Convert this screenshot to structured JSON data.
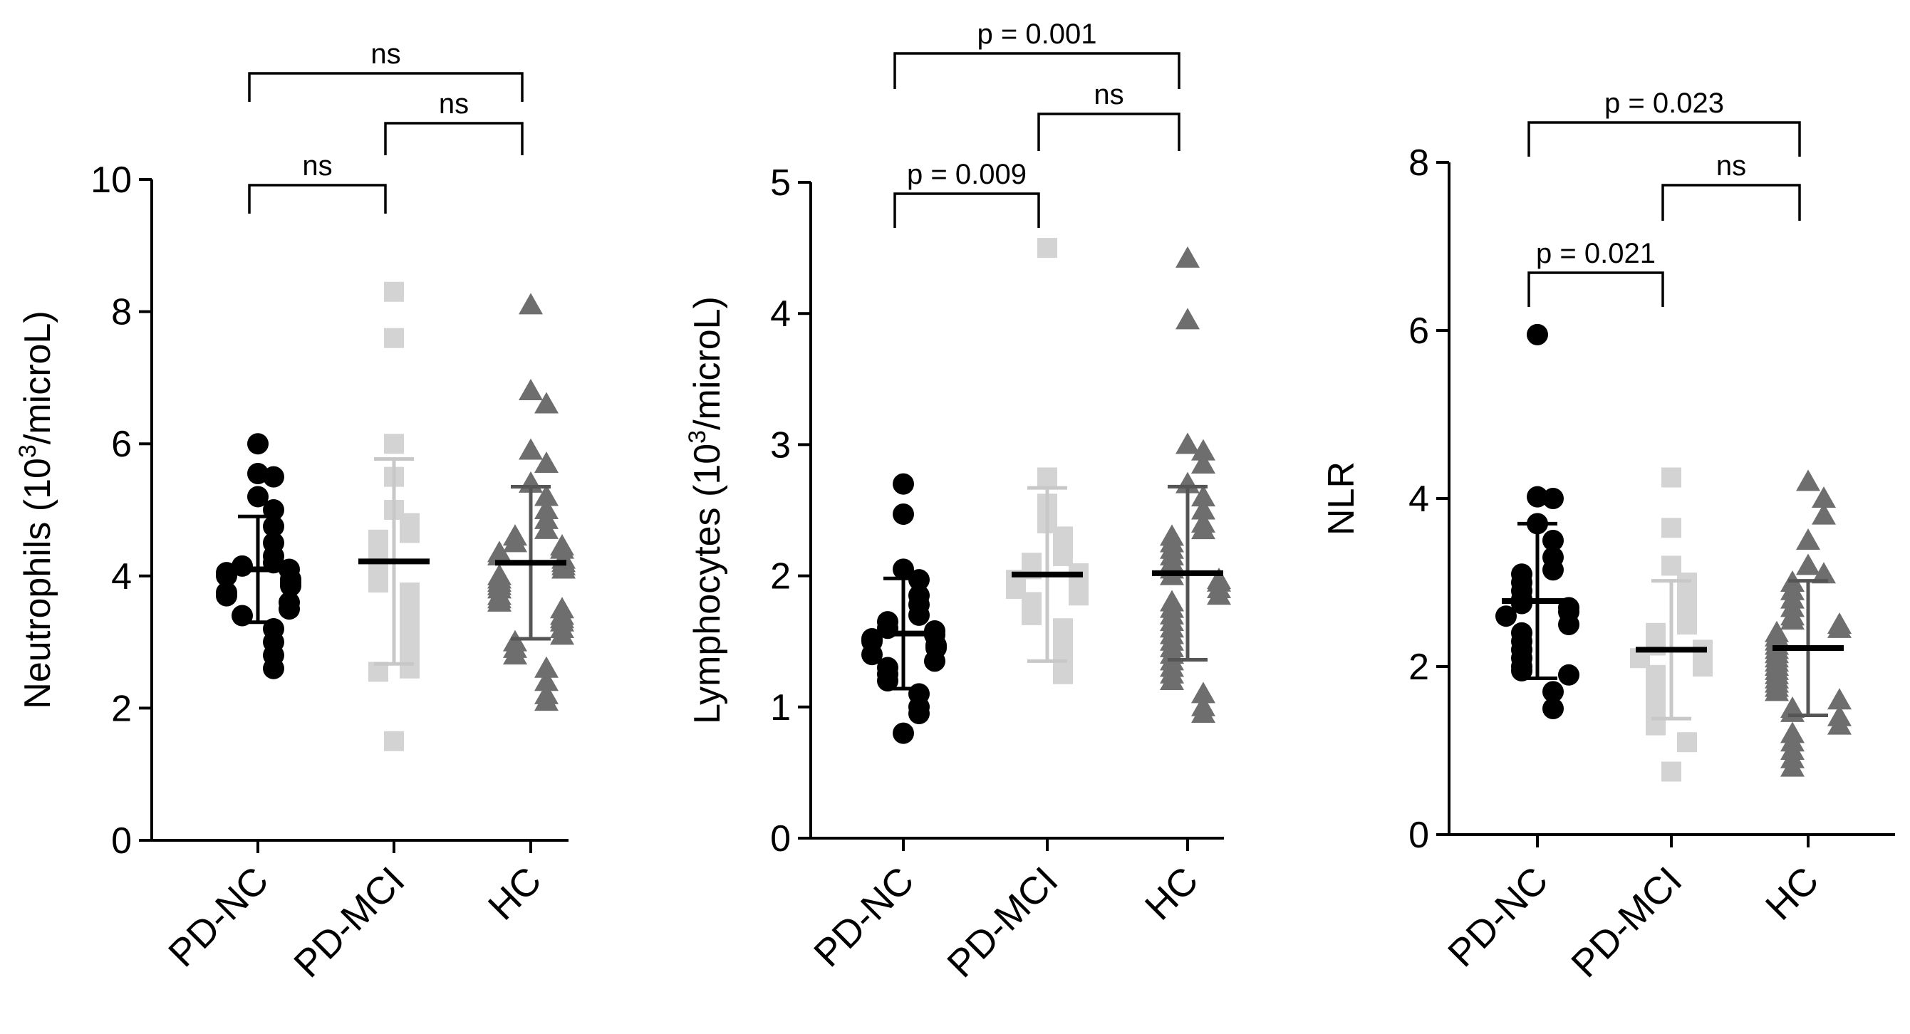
{
  "chart_data": [
    {
      "type": "scatter",
      "ylabel": "Neutrophils (10",
      "ylabel_sup": "3",
      "ylabel_suffix": "/microL)",
      "ylim": [
        0,
        10
      ],
      "yticks": [
        "0",
        "2",
        "4",
        "6",
        "8",
        "10"
      ],
      "categories": [
        "PD-NC",
        "PD-MCI",
        "HC"
      ],
      "colors": [
        "#000000",
        "#d3d3d3",
        "#6e6e6e"
      ],
      "markers": [
        "circle",
        "square",
        "triangle"
      ],
      "means": [
        4.1,
        4.22,
        4.2
      ],
      "sd": [
        0.8,
        1.55,
        1.15
      ],
      "points": [
        [
          6.0,
          5.55,
          5.5,
          5.2,
          5.0,
          4.75,
          4.5,
          4.3,
          4.2,
          4.15,
          4.1,
          4.05,
          4.0,
          3.95,
          3.9,
          3.85,
          3.75,
          3.7,
          3.6,
          3.5,
          3.4,
          3.2,
          3.0,
          2.8,
          2.6
        ],
        [
          8.3,
          7.6,
          6.0,
          5.5,
          5.0,
          4.8,
          4.65,
          4.55,
          4.45,
          4.35,
          4.25,
          4.15,
          4.05,
          3.9,
          3.75,
          3.6,
          3.4,
          3.2,
          3.0,
          2.8,
          2.6,
          2.55,
          1.5
        ],
        [
          8.1,
          6.8,
          6.6,
          5.9,
          5.7,
          5.4,
          5.2,
          5.0,
          4.85,
          4.7,
          4.6,
          4.5,
          4.45,
          4.4,
          4.35,
          4.3,
          4.25,
          4.2,
          4.15,
          4.1,
          4.0,
          3.95,
          3.9,
          3.85,
          3.8,
          3.7,
          3.65,
          3.6,
          3.5,
          3.4,
          3.35,
          3.3,
          3.2,
          3.1,
          3.0,
          2.9,
          2.8,
          2.6,
          2.4,
          2.2,
          2.1
        ]
      ],
      "comparisons": [
        {
          "from": 0,
          "to": 1,
          "label": "ns"
        },
        {
          "from": 1,
          "to": 2,
          "label": "ns"
        },
        {
          "from": 0,
          "to": 2,
          "label": "ns"
        }
      ]
    },
    {
      "type": "scatter",
      "ylabel": "Lymphocytes (10",
      "ylabel_sup": "3",
      "ylabel_suffix": "/microL)",
      "ylim": [
        0,
        5
      ],
      "yticks": [
        "0",
        "1",
        "2",
        "3",
        "4",
        "5"
      ],
      "categories": [
        "PD-NC",
        "PD-MCI",
        "HC"
      ],
      "colors": [
        "#000000",
        "#d3d3d3",
        "#6e6e6e"
      ],
      "markers": [
        "circle",
        "square",
        "triangle"
      ],
      "means": [
        1.56,
        2.01,
        2.02
      ],
      "sd": [
        0.42,
        0.66,
        0.66
      ],
      "points": [
        [
          2.7,
          2.47,
          2.05,
          1.97,
          1.85,
          1.78,
          1.7,
          1.65,
          1.6,
          1.58,
          1.55,
          1.52,
          1.5,
          1.47,
          1.45,
          1.4,
          1.35,
          1.3,
          1.25,
          1.2,
          1.1,
          1.0,
          0.95,
          0.8
        ],
        [
          4.5,
          2.75,
          2.55,
          2.4,
          2.3,
          2.2,
          2.15,
          2.1,
          2.05,
          2.02,
          2.0,
          1.97,
          1.95,
          1.9,
          1.85,
          1.8,
          1.75,
          1.7,
          1.6,
          1.5,
          1.4,
          1.3,
          1.25
        ],
        [
          4.42,
          3.95,
          3.0,
          2.95,
          2.85,
          2.7,
          2.6,
          2.5,
          2.4,
          2.35,
          2.3,
          2.25,
          2.2,
          2.15,
          2.1,
          2.05,
          2.0,
          1.97,
          1.95,
          1.9,
          1.85,
          1.8,
          1.75,
          1.7,
          1.65,
          1.6,
          1.55,
          1.5,
          1.45,
          1.4,
          1.35,
          1.3,
          1.25,
          1.2,
          1.1,
          1.0,
          0.95
        ]
      ],
      "comparisons": [
        {
          "from": 0,
          "to": 1,
          "label": "p = 0.009"
        },
        {
          "from": 1,
          "to": 2,
          "label": "ns"
        },
        {
          "from": 0,
          "to": 2,
          "label": "p = 0.001"
        }
      ]
    },
    {
      "type": "scatter",
      "ylabel": "NLR",
      "ylabel_sup": "",
      "ylabel_suffix": "",
      "ylim": [
        0,
        8
      ],
      "yticks": [
        "0",
        "2",
        "4",
        "6",
        "8"
      ],
      "categories": [
        "PD-NC",
        "PD-MCI",
        "HC"
      ],
      "colors": [
        "#000000",
        "#d3d3d3",
        "#6e6e6e"
      ],
      "markers": [
        "circle",
        "square",
        "triangle"
      ],
      "means": [
        2.78,
        2.2,
        2.22
      ],
      "sd": [
        0.92,
        0.82,
        0.8
      ],
      "points": [
        [
          5.95,
          4.02,
          4.0,
          3.7,
          3.5,
          3.3,
          3.15,
          3.1,
          3.0,
          2.9,
          2.8,
          2.75,
          2.7,
          2.65,
          2.6,
          2.5,
          2.4,
          2.3,
          2.2,
          2.1,
          2.0,
          1.95,
          1.9,
          1.7,
          1.5
        ],
        [
          4.25,
          3.65,
          3.2,
          3.0,
          2.85,
          2.75,
          2.6,
          2.5,
          2.4,
          2.3,
          2.25,
          2.2,
          2.15,
          2.1,
          2.0,
          1.9,
          1.8,
          1.7,
          1.6,
          1.5,
          1.4,
          1.3,
          1.1,
          0.75
        ],
        [
          4.2,
          4.0,
          3.8,
          3.5,
          3.2,
          3.1,
          3.0,
          2.9,
          2.8,
          2.7,
          2.6,
          2.55,
          2.5,
          2.45,
          2.4,
          2.35,
          2.3,
          2.25,
          2.2,
          2.15,
          2.1,
          2.05,
          2.0,
          1.95,
          1.9,
          1.85,
          1.8,
          1.75,
          1.7,
          1.6,
          1.5,
          1.45,
          1.4,
          1.3,
          1.2,
          1.1,
          1.0,
          0.9,
          0.8
        ]
      ],
      "comparisons": [
        {
          "from": 0,
          "to": 1,
          "label": "p = 0.021"
        },
        {
          "from": 1,
          "to": 2,
          "label": "ns"
        },
        {
          "from": 0,
          "to": 2,
          "label": "p = 0.023"
        }
      ]
    }
  ]
}
